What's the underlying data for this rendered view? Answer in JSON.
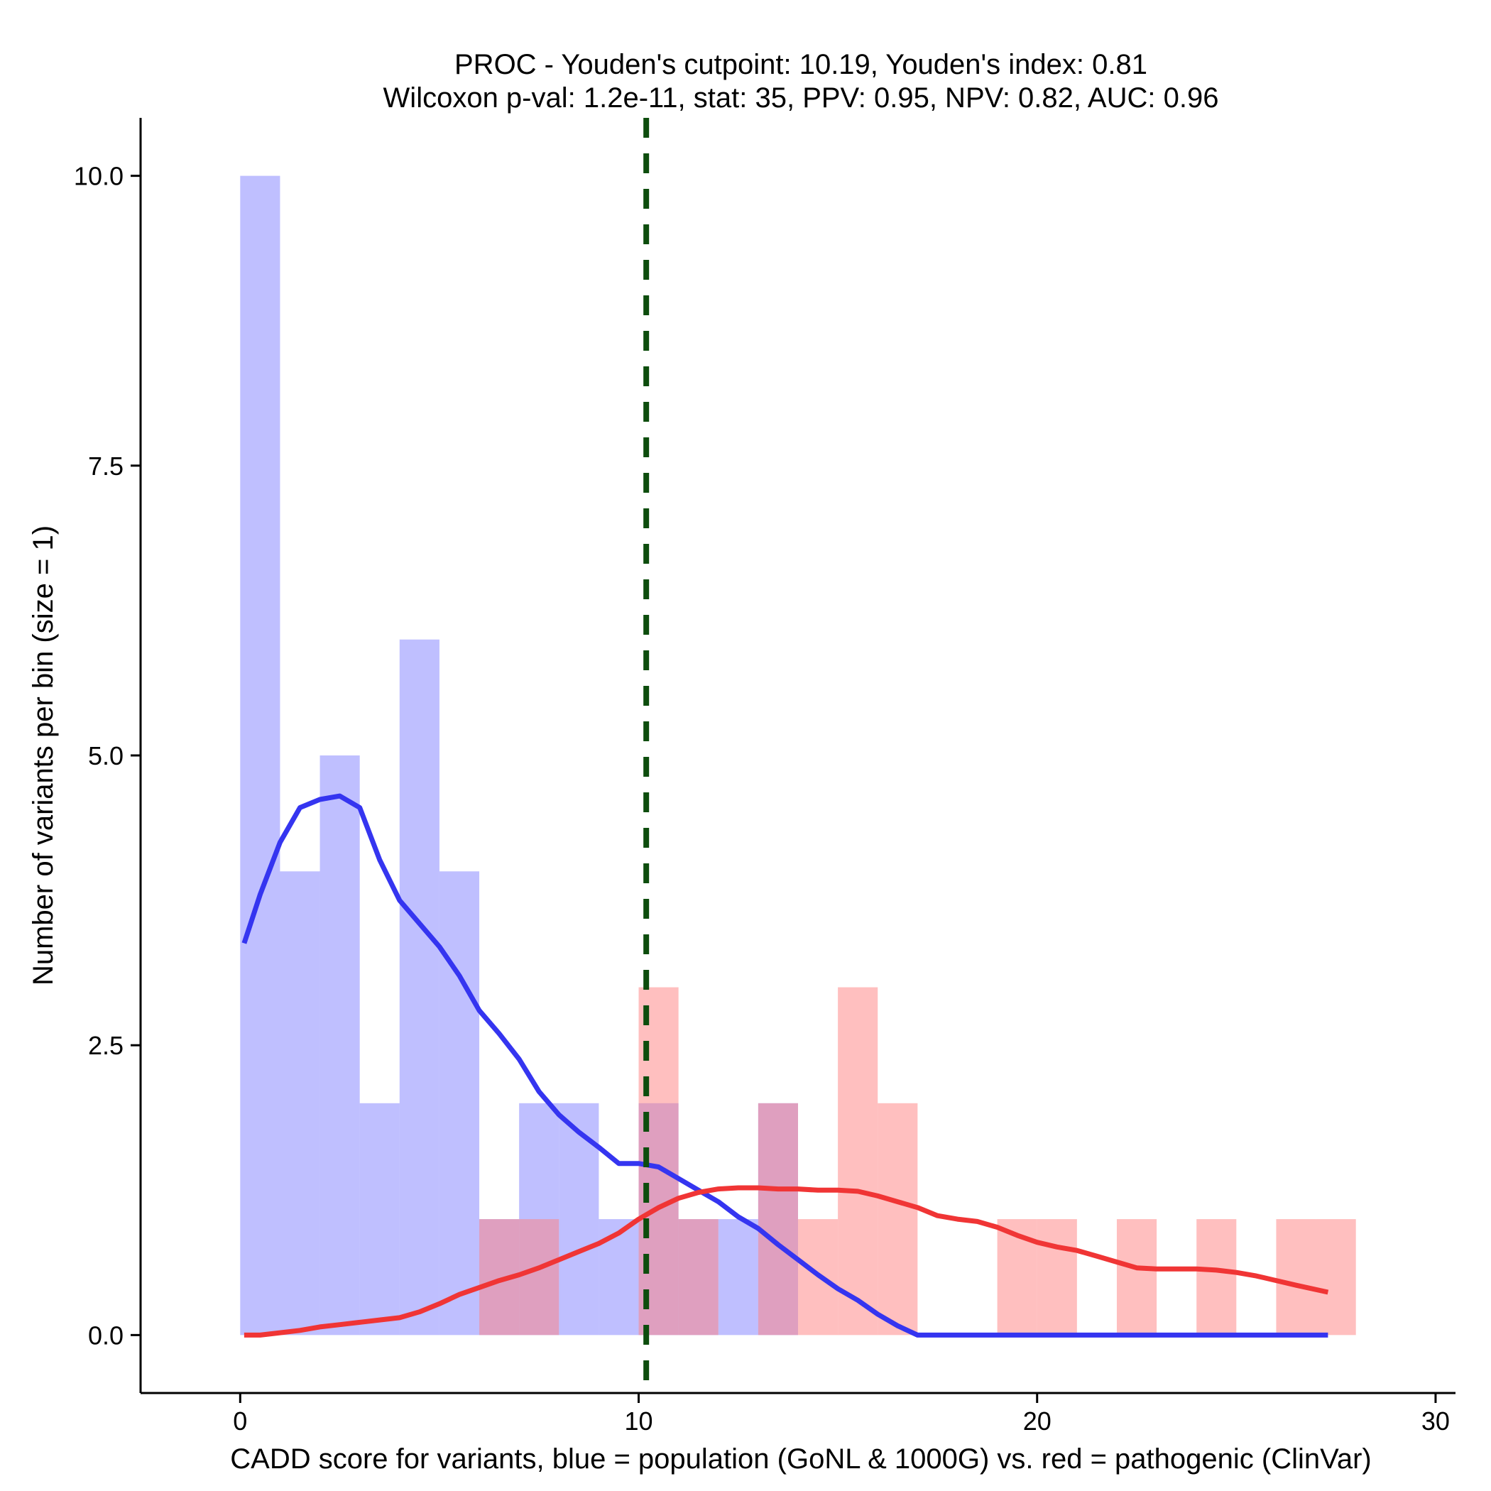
{
  "chart_data": {
    "type": "histogram",
    "title": [
      "PROC - Youden's cutpoint: 10.19, Youden's index: 0.81",
      "Wilcoxon p-val: 1.2e-11, stat: 35, PPV: 0.95, NPV: 0.82, AUC: 0.96"
    ],
    "xlabel": "CADD score for variants, blue = population (GoNL & 1000G) vs. red = pathogenic (ClinVar)",
    "ylabel": "Number of variants per bin (size = 1)",
    "xlim": [
      -2.5,
      30.5
    ],
    "ylim": [
      -0.5,
      10.5
    ],
    "x_ticks": [
      0,
      10,
      20,
      30
    ],
    "x_tick_labels": [
      "0",
      "10",
      "20",
      "30"
    ],
    "y_ticks": [
      0,
      2.5,
      5,
      7.5,
      10
    ],
    "y_tick_labels": [
      "0.0",
      "2.5",
      "5.0",
      "7.5",
      "10.0"
    ],
    "bin_width": 1,
    "cutpoint": 10.19,
    "series": [
      {
        "name": "population (GoNL & 1000G)",
        "color": "#8080ff",
        "bins": [
          [
            0,
            10
          ],
          [
            1,
            4
          ],
          [
            2,
            5
          ],
          [
            3,
            2
          ],
          [
            4,
            6
          ],
          [
            5,
            4
          ],
          [
            6,
            1
          ],
          [
            7,
            2
          ],
          [
            8,
            2
          ],
          [
            9,
            1
          ],
          [
            10,
            2
          ],
          [
            11,
            1
          ],
          [
            12,
            1
          ],
          [
            13,
            2
          ]
        ],
        "density_color": "#3535f0",
        "density": [
          [
            0.1,
            3.38
          ],
          [
            0.5,
            3.8
          ],
          [
            1.0,
            4.25
          ],
          [
            1.5,
            4.55
          ],
          [
            2.0,
            4.62
          ],
          [
            2.5,
            4.65
          ],
          [
            3.0,
            4.55
          ],
          [
            3.5,
            4.1
          ],
          [
            4.0,
            3.75
          ],
          [
            4.5,
            3.55
          ],
          [
            5.0,
            3.35
          ],
          [
            5.5,
            3.1
          ],
          [
            6.0,
            2.8
          ],
          [
            6.5,
            2.6
          ],
          [
            7.0,
            2.38
          ],
          [
            7.5,
            2.1
          ],
          [
            8.0,
            1.9
          ],
          [
            8.5,
            1.75
          ],
          [
            9.0,
            1.62
          ],
          [
            9.5,
            1.48
          ],
          [
            10.0,
            1.48
          ],
          [
            10.5,
            1.45
          ],
          [
            11.0,
            1.35
          ],
          [
            11.5,
            1.25
          ],
          [
            12.0,
            1.15
          ],
          [
            12.5,
            1.02
          ],
          [
            13.0,
            0.92
          ],
          [
            13.5,
            0.78
          ],
          [
            14.0,
            0.65
          ],
          [
            14.5,
            0.52
          ],
          [
            15.0,
            0.4
          ],
          [
            15.5,
            0.3
          ],
          [
            16.0,
            0.18
          ],
          [
            16.5,
            0.08
          ],
          [
            17.0,
            0.0
          ],
          [
            20.0,
            0.0
          ],
          [
            24.0,
            0.0
          ],
          [
            27.3,
            0.0
          ]
        ]
      },
      {
        "name": "pathogenic (ClinVar)",
        "color": "#ff8080",
        "bins": [
          [
            6,
            1
          ],
          [
            7,
            1
          ],
          [
            10,
            3
          ],
          [
            11,
            1
          ],
          [
            13,
            2
          ],
          [
            14,
            1
          ],
          [
            15,
            3
          ],
          [
            16,
            2
          ],
          [
            19,
            1
          ],
          [
            20,
            1
          ],
          [
            22,
            1
          ],
          [
            24,
            1
          ],
          [
            26,
            1
          ],
          [
            27,
            1
          ]
        ],
        "density_color": "#f03535",
        "density": [
          [
            0.1,
            0.0
          ],
          [
            0.5,
            0.0
          ],
          [
            1.0,
            0.02
          ],
          [
            1.5,
            0.04
          ],
          [
            2.0,
            0.07
          ],
          [
            2.5,
            0.09
          ],
          [
            3.0,
            0.11
          ],
          [
            3.5,
            0.13
          ],
          [
            4.0,
            0.15
          ],
          [
            4.5,
            0.2
          ],
          [
            5.0,
            0.27
          ],
          [
            5.5,
            0.35
          ],
          [
            6.0,
            0.41
          ],
          [
            6.5,
            0.47
          ],
          [
            7.0,
            0.52
          ],
          [
            7.5,
            0.58
          ],
          [
            8.0,
            0.65
          ],
          [
            8.5,
            0.72
          ],
          [
            9.0,
            0.79
          ],
          [
            9.5,
            0.88
          ],
          [
            10.0,
            1.0
          ],
          [
            10.5,
            1.1
          ],
          [
            11.0,
            1.18
          ],
          [
            11.5,
            1.23
          ],
          [
            12.0,
            1.26
          ],
          [
            12.5,
            1.27
          ],
          [
            13.0,
            1.27
          ],
          [
            13.5,
            1.26
          ],
          [
            14.0,
            1.26
          ],
          [
            14.5,
            1.25
          ],
          [
            15.0,
            1.25
          ],
          [
            15.5,
            1.24
          ],
          [
            16.0,
            1.2
          ],
          [
            16.5,
            1.15
          ],
          [
            17.0,
            1.1
          ],
          [
            17.5,
            1.03
          ],
          [
            18.0,
            1.0
          ],
          [
            18.5,
            0.98
          ],
          [
            19.0,
            0.93
          ],
          [
            19.5,
            0.86
          ],
          [
            20.0,
            0.8
          ],
          [
            20.5,
            0.76
          ],
          [
            21.0,
            0.73
          ],
          [
            21.5,
            0.68
          ],
          [
            22.0,
            0.63
          ],
          [
            22.5,
            0.58
          ],
          [
            23.0,
            0.57
          ],
          [
            23.5,
            0.57
          ],
          [
            24.0,
            0.57
          ],
          [
            24.5,
            0.56
          ],
          [
            25.0,
            0.54
          ],
          [
            25.5,
            0.51
          ],
          [
            26.0,
            0.47
          ],
          [
            26.5,
            0.43
          ],
          [
            27.3,
            0.37
          ]
        ]
      }
    ]
  }
}
